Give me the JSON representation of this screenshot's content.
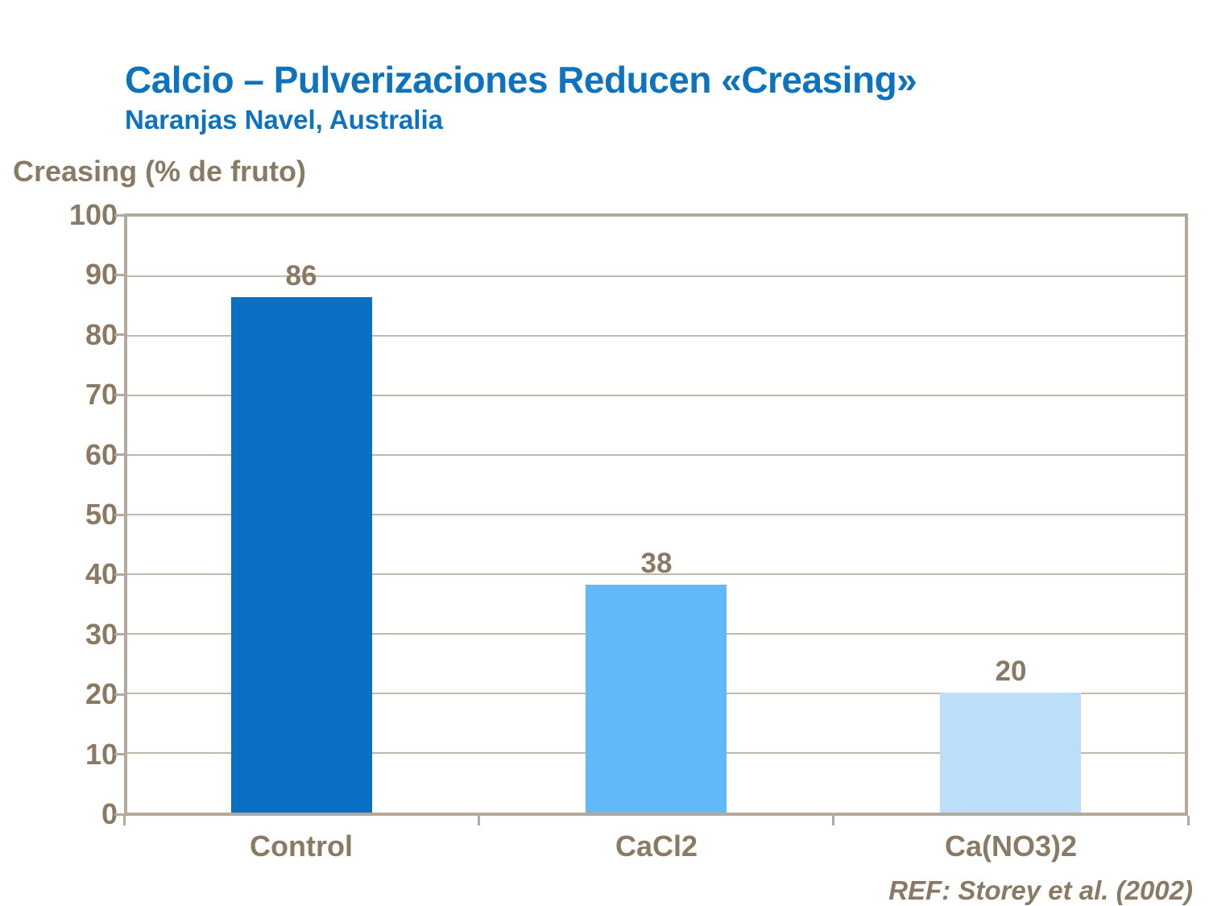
{
  "slide": {
    "title": "Calcio – Pulverizaciones Reducen «Creasing»",
    "subtitle": "Naranjas Navel, Australia",
    "axis_title": "Creasing (% de fruto)",
    "reference": "REF: Storey et al. (2002)"
  },
  "chart_data": {
    "type": "bar",
    "title": "Calcio – Pulverizaciones Reducen «Creasing»",
    "subtitle": "Naranjas Navel, Australia",
    "ylabel": "Creasing (% de fruto)",
    "xlabel": "",
    "categories": [
      "Control",
      "CaCl2",
      "Ca(NO3)2"
    ],
    "values": [
      86,
      38,
      20
    ],
    "value_labels": [
      "86",
      "38",
      "20"
    ],
    "bar_colors": [
      "#0A70C4",
      "#61B9F7",
      "#BBDEF9"
    ],
    "ylim": [
      0,
      100
    ],
    "yticks": [
      0,
      10,
      20,
      30,
      40,
      50,
      60,
      70,
      80,
      90,
      100
    ],
    "grid": "horizontal",
    "legend_position": "none",
    "annotation": "REF: Storey et al. (2002)"
  },
  "colors": {
    "title_blue": "#0D73BE",
    "text_brown": "#8A7A64",
    "axis_line": "#B3A99C",
    "gridline": "#C1B8AC",
    "background": "#FFFFFF"
  }
}
